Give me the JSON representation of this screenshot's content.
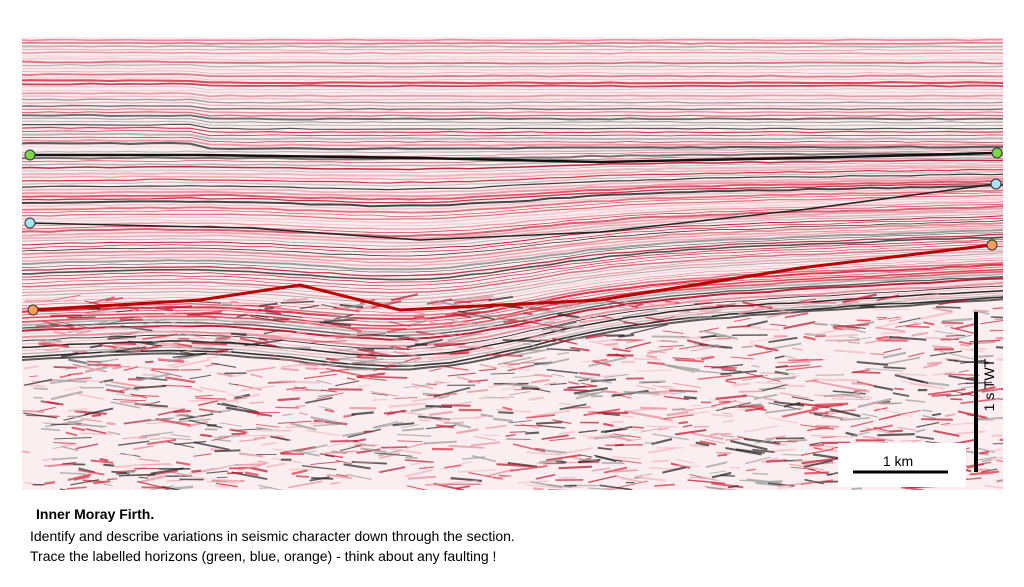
{
  "scale_bar": {
    "horizontal_label": "1 km",
    "vertical_label": "1 s TWT"
  },
  "caption": {
    "title": "Inner Moray Firth.",
    "lines": [
      "Identify and describe variations in seismic character down through the section.",
      "Trace the labelled horizons (green, blue, orange) - think about any faulting !"
    ]
  }
}
